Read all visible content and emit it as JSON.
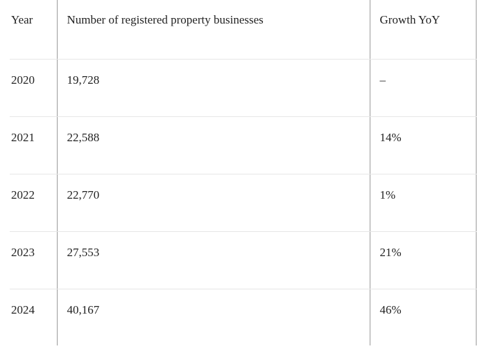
{
  "table": {
    "headers": {
      "year": "Year",
      "number": "Number of registered property businesses",
      "growth": "Growth YoY"
    },
    "rows": [
      {
        "year": "2020",
        "number": "19,728",
        "growth": "–"
      },
      {
        "year": "2021",
        "number": "22,588",
        "growth": "14%"
      },
      {
        "year": "2022",
        "number": "22,770",
        "growth": "1%"
      },
      {
        "year": "2023",
        "number": "27,553",
        "growth": "21%"
      },
      {
        "year": "2024",
        "number": "40,167",
        "growth": "46%"
      }
    ]
  }
}
